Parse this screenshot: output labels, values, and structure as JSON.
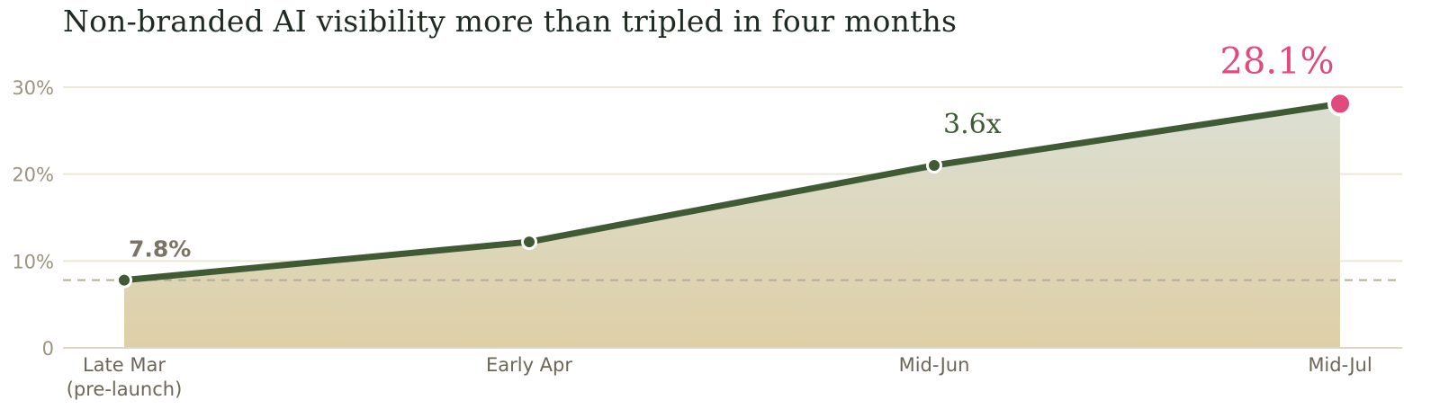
{
  "title": "Non-branded AI visibility more than tripled in four months",
  "chart_data": {
    "type": "area",
    "x": [
      "Late Mar|(pre-launch)",
      "Early Apr",
      "Mid-Jun",
      "Mid-Jul"
    ],
    "values": [
      7.8,
      12.2,
      21.0,
      28.1
    ],
    "ylim": [
      0,
      30
    ],
    "yticks": [
      0,
      10,
      20,
      30
    ],
    "ytick_labels": [
      "0",
      "10%",
      "20%",
      "30%"
    ],
    "baseline": 7.8,
    "annotations": {
      "start": "7.8%",
      "multiplier": "3.6x",
      "end": "28.1%"
    },
    "colors": {
      "line": "#3f5a34",
      "end_point": "#e24a7d",
      "fill_top": "#dcdfd3",
      "fill_bottom": "#decfa6",
      "grid": "#ece8d6",
      "baseline": "#b3ad99"
    },
    "grid": true
  }
}
